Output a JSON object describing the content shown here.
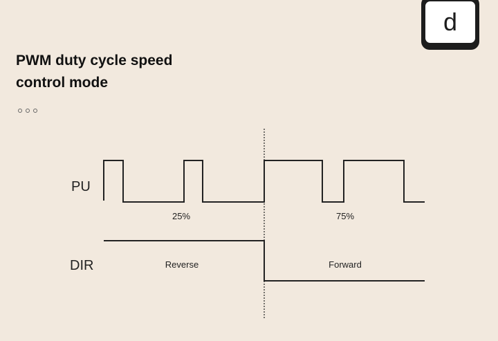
{
  "badge": {
    "letter": "d"
  },
  "title": {
    "line1": "PWM duty cycle speed",
    "line2": "control mode"
  },
  "page_indicator": {
    "count": 3
  },
  "diagram": {
    "signals": [
      {
        "label": "PU"
      },
      {
        "label": "DIR"
      }
    ],
    "pu_segments": [
      {
        "duty_label": "25%",
        "duty": 0.25
      },
      {
        "duty_label": "75%",
        "duty": 0.75
      }
    ],
    "dir_segments": [
      {
        "label": "Reverse",
        "level": "high"
      },
      {
        "label": "Forward",
        "level": "low"
      }
    ]
  }
}
